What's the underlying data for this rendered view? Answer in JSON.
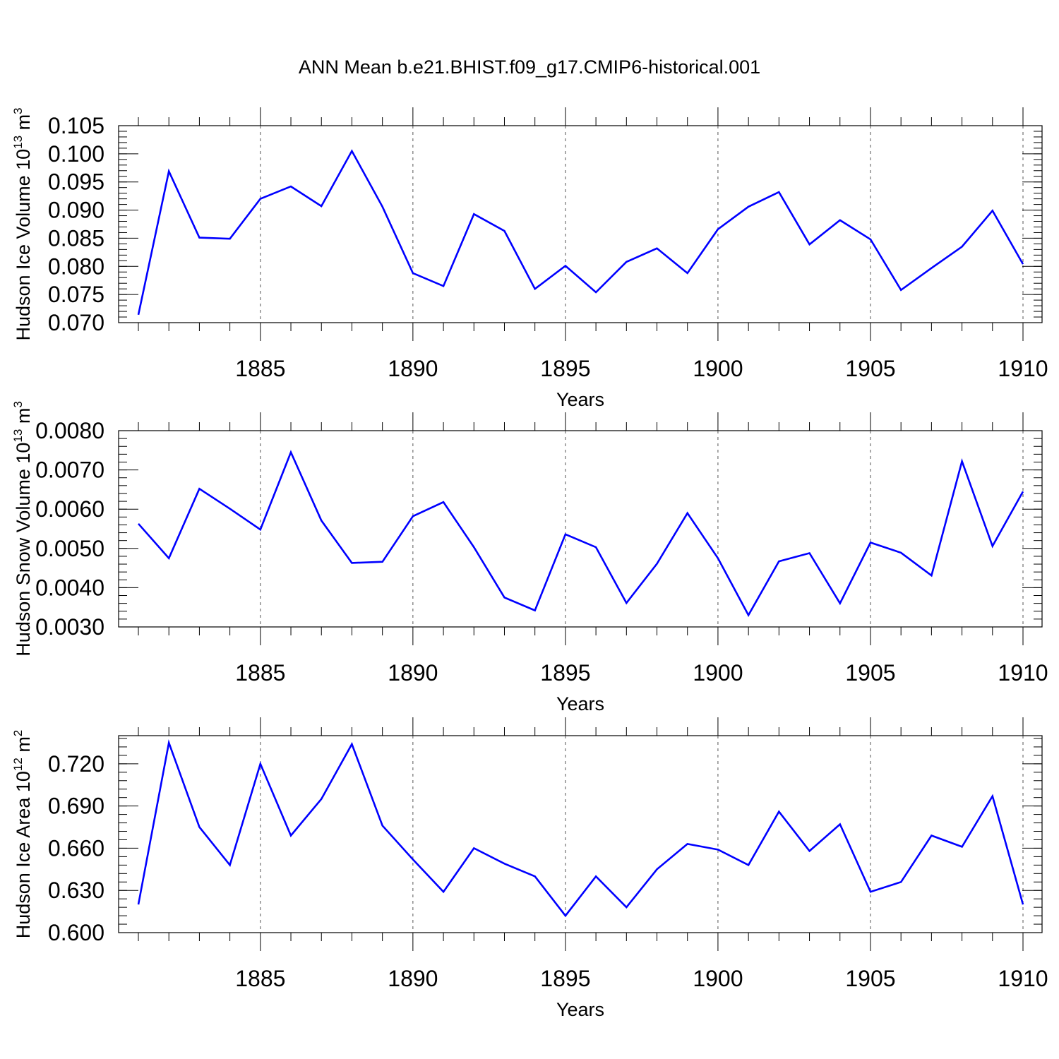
{
  "title": "ANN Mean b.e21.BHIST.f09_g17.CMIP6-historical.001",
  "line_color": "#0000ff",
  "chart_data": [
    {
      "type": "line",
      "ylabel": "Hudson Ice Volume 10",
      "ylabel_exp": "13",
      "ylabel_unit": " m",
      "ylabel_unit_exp": "3",
      "xlabel": "Years",
      "xlim": [
        1881,
        1910
      ],
      "ylim": [
        0.07,
        0.105
      ],
      "x_ticks": [
        "1885",
        "1890",
        "1895",
        "1900",
        "1905",
        "1910"
      ],
      "y_ticks": [
        "0.070",
        "0.075",
        "0.080",
        "0.085",
        "0.090",
        "0.095",
        "0.100",
        "0.105"
      ],
      "grid": "vertical dashed at major x ticks",
      "x": [
        1881,
        1882,
        1883,
        1884,
        1885,
        1886,
        1887,
        1888,
        1889,
        1890,
        1891,
        1892,
        1893,
        1894,
        1895,
        1896,
        1897,
        1898,
        1899,
        1900,
        1901,
        1902,
        1903,
        1904,
        1905,
        1906,
        1907,
        1908,
        1909,
        1910
      ],
      "values": [
        0.0714,
        0.0969,
        0.0851,
        0.0849,
        0.092,
        0.0942,
        0.0907,
        0.1005,
        0.0906,
        0.0788,
        0.0765,
        0.0893,
        0.0863,
        0.076,
        0.0801,
        0.0754,
        0.0808,
        0.0832,
        0.0788,
        0.0866,
        0.0906,
        0.0932,
        0.0839,
        0.0882,
        0.0848,
        0.0758,
        0.0797,
        0.0835,
        0.0899,
        0.0804
      ]
    },
    {
      "type": "line",
      "ylabel": "Hudson Snow Volume 10",
      "ylabel_exp": "13",
      "ylabel_unit": " m",
      "ylabel_unit_exp": "3",
      "xlabel": "Years",
      "xlim": [
        1881,
        1910
      ],
      "ylim": [
        0.003,
        0.008
      ],
      "x_ticks": [
        "1885",
        "1890",
        "1895",
        "1900",
        "1905",
        "1910"
      ],
      "y_ticks": [
        "0.0030",
        "0.0040",
        "0.0050",
        "0.0060",
        "0.0070",
        "0.0080"
      ],
      "grid": "vertical dashed at major x ticks",
      "x": [
        1881,
        1882,
        1883,
        1884,
        1885,
        1886,
        1887,
        1888,
        1889,
        1890,
        1891,
        1892,
        1893,
        1894,
        1895,
        1896,
        1897,
        1898,
        1899,
        1900,
        1901,
        1902,
        1903,
        1904,
        1905,
        1906,
        1907,
        1908,
        1909,
        1910
      ],
      "values": [
        0.00563,
        0.00475,
        0.00652,
        0.00601,
        0.00548,
        0.00745,
        0.00571,
        0.00463,
        0.00466,
        0.00582,
        0.00618,
        0.00503,
        0.00375,
        0.00342,
        0.00536,
        0.00503,
        0.00361,
        0.00461,
        0.0059,
        0.00475,
        0.0033,
        0.00467,
        0.00488,
        0.0036,
        0.00515,
        0.00489,
        0.00431,
        0.00722,
        0.00506,
        0.00645
      ]
    },
    {
      "type": "line",
      "ylabel": "Hudson Ice Area 10",
      "ylabel_exp": "12",
      "ylabel_unit": " m",
      "ylabel_unit_exp": "2",
      "xlabel": "Years",
      "xlim": [
        1881,
        1910
      ],
      "ylim": [
        0.6,
        0.74
      ],
      "x_ticks": [
        "1885",
        "1890",
        "1895",
        "1900",
        "1905",
        "1910"
      ],
      "y_ticks": [
        "0.600",
        "0.630",
        "0.660",
        "0.690",
        "0.720"
      ],
      "grid": "vertical dashed at major x ticks",
      "x": [
        1881,
        1882,
        1883,
        1884,
        1885,
        1886,
        1887,
        1888,
        1889,
        1890,
        1891,
        1892,
        1893,
        1894,
        1895,
        1896,
        1897,
        1898,
        1899,
        1900,
        1901,
        1902,
        1903,
        1904,
        1905,
        1906,
        1907,
        1908,
        1909,
        1910
      ],
      "values": [
        0.62,
        0.735,
        0.675,
        0.648,
        0.72,
        0.669,
        0.695,
        0.734,
        0.676,
        0.652,
        0.629,
        0.66,
        0.649,
        0.64,
        0.612,
        0.64,
        0.618,
        0.645,
        0.663,
        0.659,
        0.648,
        0.686,
        0.658,
        0.677,
        0.629,
        0.636,
        0.669,
        0.661,
        0.697,
        0.62
      ]
    }
  ]
}
